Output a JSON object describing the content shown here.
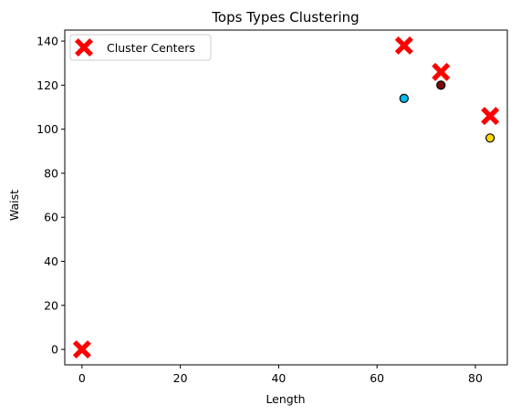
{
  "chart_data": {
    "type": "scatter",
    "title": "Tops Types Clustering",
    "xlabel": "Length",
    "ylabel": "Waist",
    "xlim": [
      -3.5,
      86.5
    ],
    "ylim": [
      -7,
      145
    ],
    "xticks": [
      0,
      20,
      40,
      60,
      80
    ],
    "yticks": [
      0,
      20,
      40,
      60,
      80,
      100,
      120,
      140
    ],
    "grid": false,
    "legend": {
      "placement": "top-left",
      "entries": [
        "Cluster Centers"
      ]
    },
    "series": [
      {
        "marker": "circle",
        "points": [
          {
            "x": 65.5,
            "y": 114,
            "color": "#00bfef"
          },
          {
            "x": 73,
            "y": 120,
            "color": "#7a0b0b"
          },
          {
            "x": 83,
            "y": 96,
            "color": "#ffd700"
          }
        ]
      },
      {
        "name": "Cluster Centers",
        "marker": "x",
        "color": "#ff0000",
        "points": [
          {
            "x": 0,
            "y": 0
          },
          {
            "x": 65.5,
            "y": 138
          },
          {
            "x": 73,
            "y": 126
          },
          {
            "x": 83,
            "y": 106
          }
        ]
      }
    ]
  }
}
